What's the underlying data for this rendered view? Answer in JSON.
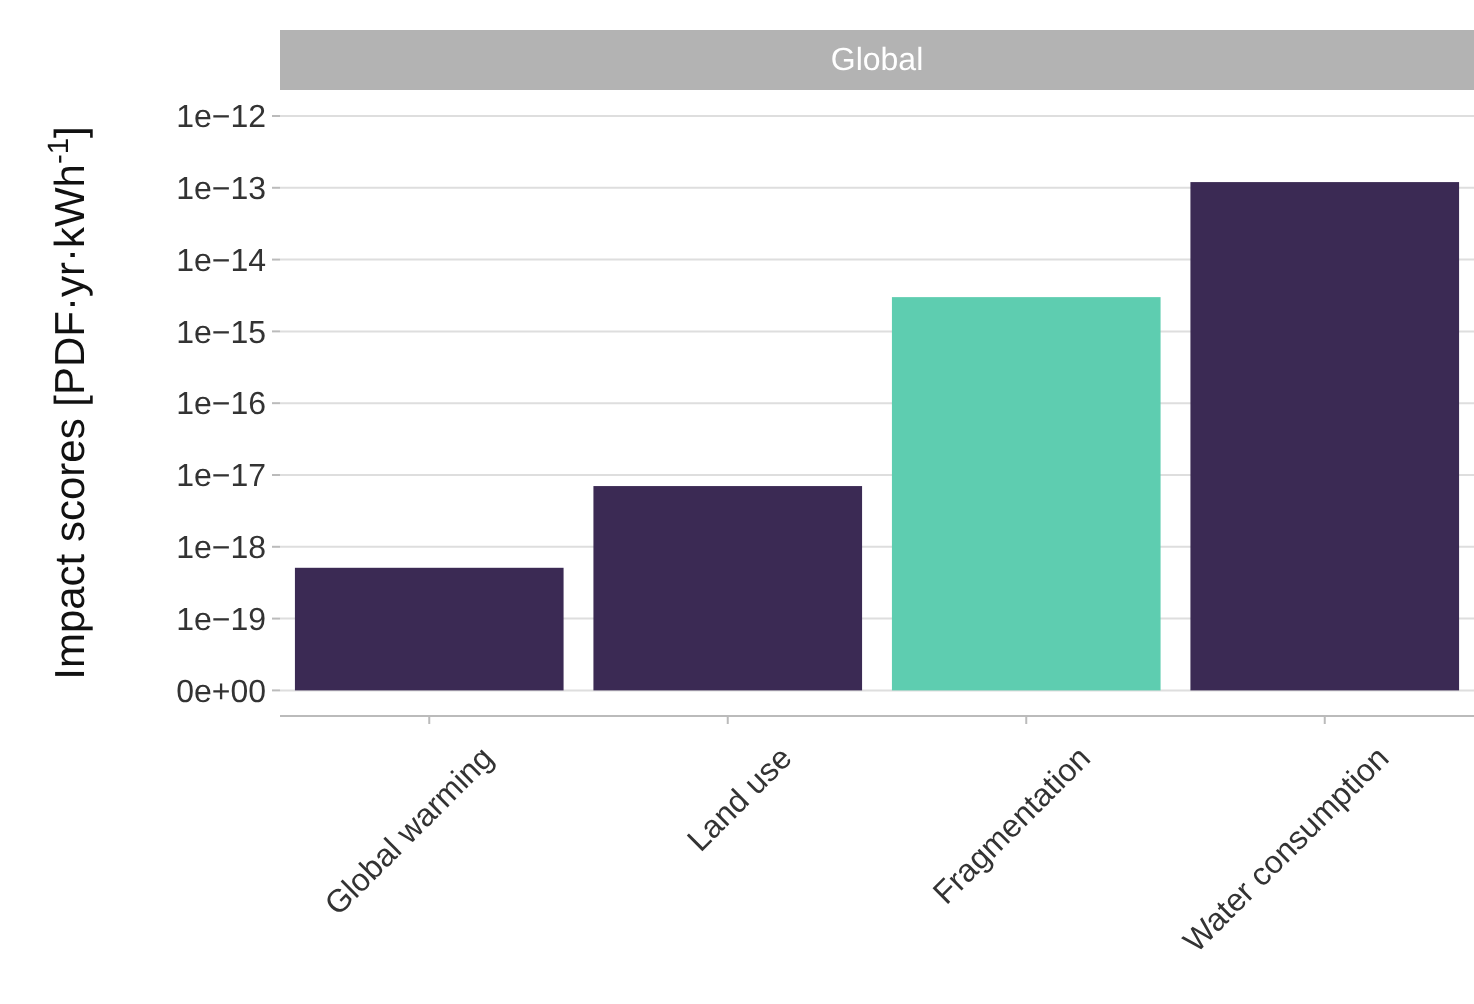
{
  "chart_data": {
    "type": "bar",
    "title": "Global",
    "ylabel": "Impact scores [PDF·yr·kWh$^{-1}$]",
    "categories": [
      "Global warming",
      "Land use",
      "Fragmentation",
      "Water consumption"
    ],
    "values": [
      5e-19,
      7e-18,
      3e-15,
      1.2e-13
    ],
    "colors": [
      "#3b2a54",
      "#3b2a54",
      "#5ecdb0",
      "#3b2a54"
    ],
    "base": [
      1e-20,
      1e-20,
      1e-20,
      1e-20
    ],
    "log": true,
    "ylim": [
      4.4e-21,
      2.3e-12
    ],
    "yticks": [
      {
        "value": 1e-20,
        "label": "0e+00"
      },
      {
        "value": 1e-19,
        "label": "1e−19"
      },
      {
        "value": 1e-18,
        "label": "1e−18"
      },
      {
        "value": 1e-17,
        "label": "1e−17"
      },
      {
        "value": 1e-16,
        "label": "1e−16"
      },
      {
        "value": 1e-15,
        "label": "1e−15"
      },
      {
        "value": 1e-14,
        "label": "1e−14"
      },
      {
        "value": 1e-13,
        "label": "1e−13"
      },
      {
        "value": 1e-12,
        "label": "1e−12"
      }
    ],
    "grid": "y"
  }
}
